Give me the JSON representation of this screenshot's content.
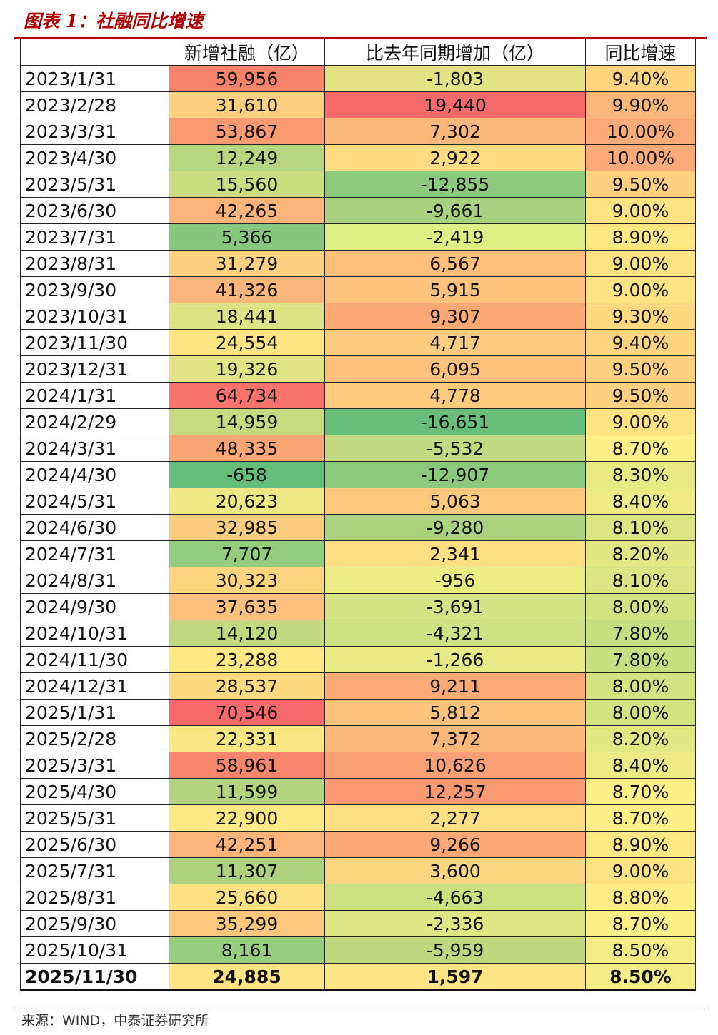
{
  "title": "图表 1：社融同比增速",
  "headers": [
    "",
    "新增社融（亿）",
    "比去年同期增加（亿）",
    "同比增速"
  ],
  "rows": [
    {
      "date": "2023/1/31",
      "new": "59,956",
      "yoy_add": "-1,803",
      "growth": "9.40%",
      "c1": "#f8836b",
      "c2": "#e4e383",
      "c3": "#fed47f"
    },
    {
      "date": "2023/2/28",
      "new": "31,610",
      "yoy_add": "19,440",
      "growth": "9.90%",
      "c1": "#fdd07f",
      "c2": "#f8696b",
      "c3": "#fcb679"
    },
    {
      "date": "2023/3/31",
      "new": "53,867",
      "yoy_add": "7,302",
      "growth": "10.00%",
      "c1": "#f99a70",
      "c2": "#fcb87a",
      "c3": "#fcaa77"
    },
    {
      "date": "2023/4/30",
      "new": "12,249",
      "yoy_add": "2,922",
      "growth": "10.00%",
      "c1": "#b7d67f",
      "c2": "#feda81",
      "c3": "#fcaa77"
    },
    {
      "date": "2023/5/31",
      "new": "15,560",
      "yoy_add": "-12,855",
      "growth": "9.50%",
      "c1": "#ccdc81",
      "c2": "#8cc97c",
      "c3": "#fed07f"
    },
    {
      "date": "2023/6/30",
      "new": "42,265",
      "yoy_add": "-9,661",
      "growth": "9.00%",
      "c1": "#fcb47a",
      "c2": "#a8d27f",
      "c3": "#fee382"
    },
    {
      "date": "2023/7/31",
      "new": "5,366",
      "yoy_add": "-2,419",
      "growth": "8.90%",
      "c1": "#86c77d",
      "c2": "#deef84",
      "c3": "#fee883"
    },
    {
      "date": "2023/8/31",
      "new": "31,279",
      "yoy_add": "6,567",
      "growth": "9.00%",
      "c1": "#fdd17f",
      "c2": "#fdbf7b",
      "c3": "#fee382"
    },
    {
      "date": "2023/9/30",
      "new": "41,326",
      "yoy_add": "5,915",
      "growth": "9.00%",
      "c1": "#fcb57a",
      "c2": "#fdc27c",
      "c3": "#fee382"
    },
    {
      "date": "2023/10/31",
      "new": "18,441",
      "yoy_add": "9,307",
      "growth": "9.30%",
      "c1": "#dde284",
      "c2": "#fca976",
      "c3": "#fed980"
    },
    {
      "date": "2023/11/30",
      "new": "24,554",
      "yoy_add": "4,717",
      "growth": "9.40%",
      "c1": "#fee582",
      "c2": "#fecc7e",
      "c3": "#fed47f"
    },
    {
      "date": "2023/12/31",
      "new": "19,326",
      "yoy_add": "6,095",
      "growth": "9.50%",
      "c1": "#e2e483",
      "c2": "#fdc17c",
      "c3": "#fed07f"
    },
    {
      "date": "2024/1/31",
      "new": "64,734",
      "yoy_add": "4,778",
      "growth": "9.50%",
      "c1": "#f8736c",
      "c2": "#fecb7e",
      "c3": "#fed07f"
    },
    {
      "date": "2024/2/29",
      "new": "14,959",
      "yoy_add": "-16,651",
      "growth": "9.00%",
      "c1": "#c7da80",
      "c2": "#69be7b",
      "c3": "#fee382"
    },
    {
      "date": "2024/3/31",
      "new": "48,335",
      "yoy_add": "-5,532",
      "growth": "8.70%",
      "c1": "#fba575",
      "c2": "#c2d981",
      "c3": "#fef087"
    },
    {
      "date": "2024/4/30",
      "new": "-658",
      "yoy_add": "-12,907",
      "growth": "8.30%",
      "c1": "#63be7b",
      "c2": "#8bc97c",
      "c3": "#e9e983"
    },
    {
      "date": "2024/5/31",
      "new": "20,623",
      "yoy_add": "5,063",
      "growth": "8.40%",
      "c1": "#eee885",
      "c2": "#fec97d",
      "c3": "#eeeb84"
    },
    {
      "date": "2024/6/30",
      "new": "32,985",
      "yoy_add": "-9,280",
      "growth": "8.10%",
      "c1": "#fdcc7e",
      "c2": "#abd37f",
      "c3": "#dbe583"
    },
    {
      "date": "2024/7/31",
      "new": "7,707",
      "yoy_add": "2,341",
      "growth": "8.20%",
      "c1": "#94cc7d",
      "c2": "#fedf82",
      "c3": "#e2e783"
    },
    {
      "date": "2024/8/31",
      "new": "30,323",
      "yoy_add": "-956",
      "growth": "8.10%",
      "c1": "#fdd480",
      "c2": "#ecec85",
      "c3": "#dbe583"
    },
    {
      "date": "2024/9/30",
      "new": "37,635",
      "yoy_add": "-3,691",
      "growth": "8.00%",
      "c1": "#fcc07c",
      "c2": "#d4e383",
      "c3": "#d4e382"
    },
    {
      "date": "2024/10/31",
      "new": "14,120",
      "yoy_add": "-4,321",
      "growth": "7.80%",
      "c1": "#c3d980",
      "c2": "#cfe182",
      "c3": "#c7df81"
    },
    {
      "date": "2024/11/30",
      "new": "23,288",
      "yoy_add": "-1,266",
      "growth": "7.80%",
      "c1": "#fde883",
      "c2": "#e9ea85",
      "c3": "#c7df81"
    },
    {
      "date": "2024/12/31",
      "new": "28,537",
      "yoy_add": "9,211",
      "growth": "8.00%",
      "c1": "#fdd981",
      "c2": "#fcaa76",
      "c3": "#d4e382"
    },
    {
      "date": "2025/1/31",
      "new": "70,546",
      "yoy_add": "5,812",
      "growth": "8.00%",
      "c1": "#f8696b",
      "c2": "#fdc37c",
      "c3": "#d4e382"
    },
    {
      "date": "2025/2/28",
      "new": "22,331",
      "yoy_add": "7,372",
      "growth": "8.20%",
      "c1": "#f9e784",
      "c2": "#fcb77a",
      "c3": "#e2e783"
    },
    {
      "date": "2025/3/31",
      "new": "58,961",
      "yoy_add": "10,626",
      "growth": "8.40%",
      "c1": "#f8866d",
      "c2": "#fba074",
      "c3": "#eeeb84"
    },
    {
      "date": "2025/4/30",
      "new": "11,599",
      "yoy_add": "12,257",
      "growth": "8.70%",
      "c1": "#b2d47f",
      "c2": "#fb9a72",
      "c3": "#fef087"
    },
    {
      "date": "2025/5/31",
      "new": "22,900",
      "yoy_add": "2,277",
      "growth": "8.70%",
      "c1": "#fde983",
      "c2": "#fedf82",
      "c3": "#fef087"
    },
    {
      "date": "2025/6/30",
      "new": "42,251",
      "yoy_add": "9,266",
      "growth": "8.90%",
      "c1": "#fcb47a",
      "c2": "#fca976",
      "c3": "#fee883"
    },
    {
      "date": "2025/7/31",
      "new": "11,307",
      "yoy_add": "3,600",
      "growth": "9.00%",
      "c1": "#aed27f",
      "c2": "#fed680",
      "c3": "#fee382"
    },
    {
      "date": "2025/8/31",
      "new": "25,660",
      "yoy_add": "-4,663",
      "growth": "8.80%",
      "c1": "#fee282",
      "c2": "#cce082",
      "c3": "#feec85"
    },
    {
      "date": "2025/9/30",
      "new": "35,299",
      "yoy_add": "-2,336",
      "growth": "8.70%",
      "c1": "#fdc87d",
      "c2": "#dfe784",
      "c3": "#fef087"
    },
    {
      "date": "2025/10/31",
      "new": "8,161",
      "yoy_add": "-5,959",
      "growth": "8.50%",
      "c1": "#97cd7e",
      "c2": "#bfd880",
      "c3": "#f4ed86"
    },
    {
      "date": "2025/11/30",
      "new": "24,885",
      "yoy_add": "1,597",
      "growth": "8.50%",
      "c1": "#fee482",
      "c2": "#fee583",
      "c3": "#f4ed86"
    }
  ],
  "source": "来源：WIND，中泰证券研究所"
}
